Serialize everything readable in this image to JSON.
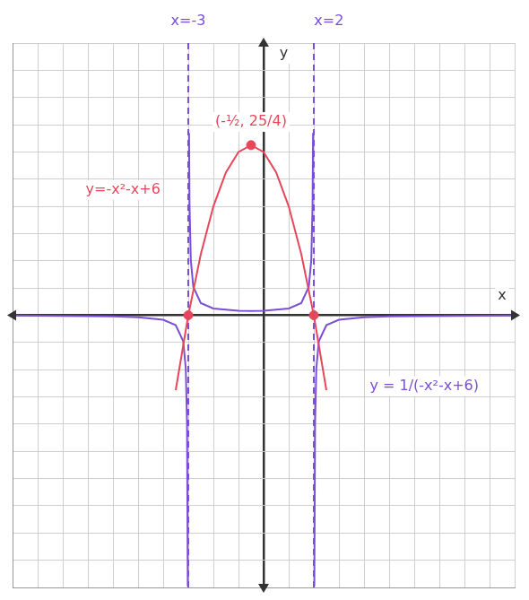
{
  "chart_data": {
    "type": "scatter",
    "xlim": [
      -10,
      10
    ],
    "ylim": [
      -10,
      10
    ],
    "xticks": [
      -10,
      -9,
      -8,
      -7,
      -6,
      -5,
      -4,
      -3,
      -2,
      -1,
      0,
      1,
      2,
      3,
      4,
      5,
      6,
      7,
      8,
      9,
      10
    ],
    "yticks": [
      -10,
      -9,
      -8,
      -7,
      -6,
      -5,
      -4,
      -3,
      -2,
      -1,
      0,
      1,
      2,
      3,
      4,
      5,
      6,
      7,
      8,
      9,
      10
    ],
    "grid": true,
    "tick_labels": false,
    "series": [
      {
        "type": "line",
        "color": "#e8475a",
        "line_style": "solid",
        "x": [
          -3.5,
          -3,
          -2.5,
          -2,
          -1.5,
          -1,
          -0.5,
          0,
          0.5,
          1,
          1.5,
          2,
          2.5
        ],
        "values": [
          -2.75,
          0,
          2.25,
          4,
          5.25,
          6,
          6.25,
          6,
          5.25,
          4,
          2.25,
          0,
          -2.75
        ]
      },
      {
        "type": "line",
        "color": "#7a4fd6",
        "line_style": "solid",
        "x": [
          -10,
          -6,
          -5,
          -4,
          -3.5,
          -3.2,
          -3.1,
          -3.05,
          -3.02,
          -3,
          -2.97,
          -2.95,
          -2.9,
          -2.8,
          -2.5,
          -2,
          -1,
          -0.5,
          0,
          1,
          1.5,
          1.8,
          1.9,
          1.95,
          1.97,
          2,
          2.02,
          2.05,
          2.1,
          2.2,
          2.5,
          3,
          4,
          5,
          10
        ],
        "values": [
          -0.012,
          -0.042,
          -0.071,
          -0.167,
          -0.364,
          -0.96,
          -1.96,
          -3.96,
          -9.96,
          null,
          6.7,
          4.04,
          2.04,
          1.04,
          0.444,
          0.25,
          0.167,
          0.16,
          0.167,
          0.25,
          0.444,
          1.04,
          2.04,
          4.04,
          6.7,
          null,
          -9.96,
          -3.96,
          -1.96,
          -0.96,
          -0.364,
          -0.167,
          -0.071,
          -0.042,
          -0.0096
        ]
      },
      {
        "type": "line",
        "color": "#7a4fd6",
        "line_style": "dashed",
        "x": [
          -3,
          -3
        ],
        "values": [
          -10,
          10
        ]
      },
      {
        "type": "line",
        "color": "#7a4fd6",
        "line_style": "dashed",
        "x": [
          2,
          2
        ],
        "values": [
          -10,
          10
        ]
      },
      {
        "type": "scatter",
        "color": "#e8475a",
        "marker": "circle",
        "x": [
          -0.5,
          -3,
          2
        ],
        "values": [
          6.25,
          0,
          0
        ]
      }
    ],
    "annotations": [
      {
        "text": "x=-3",
        "x": -3,
        "y": 10.8,
        "color": "#7a4fd6"
      },
      {
        "text": "x=2",
        "x": 2.6,
        "y": 10.8,
        "color": "#7a4fd6"
      },
      {
        "text": "y",
        "x": 0.8,
        "y": 9.6,
        "color": "#333333"
      },
      {
        "text": "x",
        "x": 9.5,
        "y": 0.7,
        "color": "#333333"
      },
      {
        "text": "(-½, 25/4)",
        "x": -0.5,
        "y": 7.1,
        "color": "#e8475a"
      },
      {
        "text": "y=-x²-x+6",
        "x": -5.6,
        "y": 4.6,
        "color": "#e8475a"
      },
      {
        "text": "y = 1/(-x²-x+6)",
        "x": 6.4,
        "y": -2.6,
        "color": "#7a4fd6"
      }
    ]
  }
}
